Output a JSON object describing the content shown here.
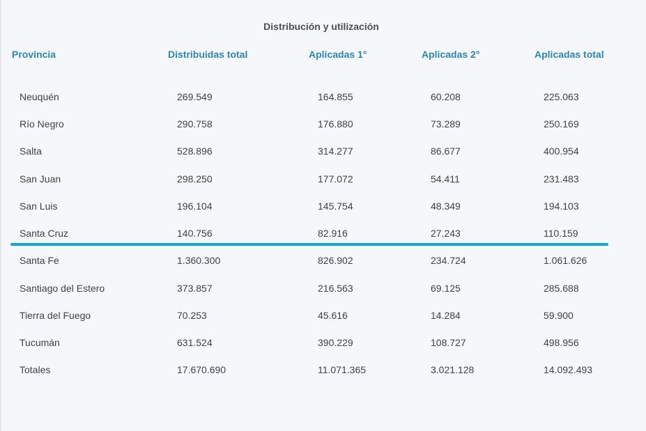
{
  "title": "Distribución y utilización",
  "columns": [
    "Provincia",
    "Distribuidas total",
    "Aplicadas 1°",
    "Aplicadas 2°",
    "Aplicadas total"
  ],
  "rows": [
    [
      "Neuquén",
      "269.549",
      "164.855",
      "60.208",
      "225.063"
    ],
    [
      "Río Negro",
      "290.758",
      "176.880",
      "73.289",
      "250.169"
    ],
    [
      "Salta",
      "528.896",
      "314.277",
      "86.677",
      "400.954"
    ],
    [
      "San Juan",
      "298.250",
      "177.072",
      "54.411",
      "231.483"
    ],
    [
      "San Luis",
      "196.104",
      "145.754",
      "48.349",
      "194.103"
    ],
    [
      "Santa Cruz",
      "140.756",
      "82.916",
      "27.243",
      "110.159"
    ],
    [
      "Santa Fe",
      "1.360.300",
      "826.902",
      "234.724",
      "1.061.626"
    ],
    [
      "Santiago del Estero",
      "373.857",
      "216.563",
      "69.125",
      "285.688"
    ],
    [
      "Tierra del Fuego",
      "70.253",
      "45.616",
      "14.284",
      "59.900"
    ],
    [
      "Tucumán",
      "631.524",
      "390.229",
      "108.727",
      "498.956"
    ],
    [
      "Totales",
      "17.670.690",
      "11.071.365",
      "3.021.128",
      "14.092.493"
    ]
  ],
  "colors": {
    "header_text": "#2b86b1",
    "divider": "#10a5dc",
    "body_text": "#3d4248",
    "background": "#f5f7fa"
  }
}
